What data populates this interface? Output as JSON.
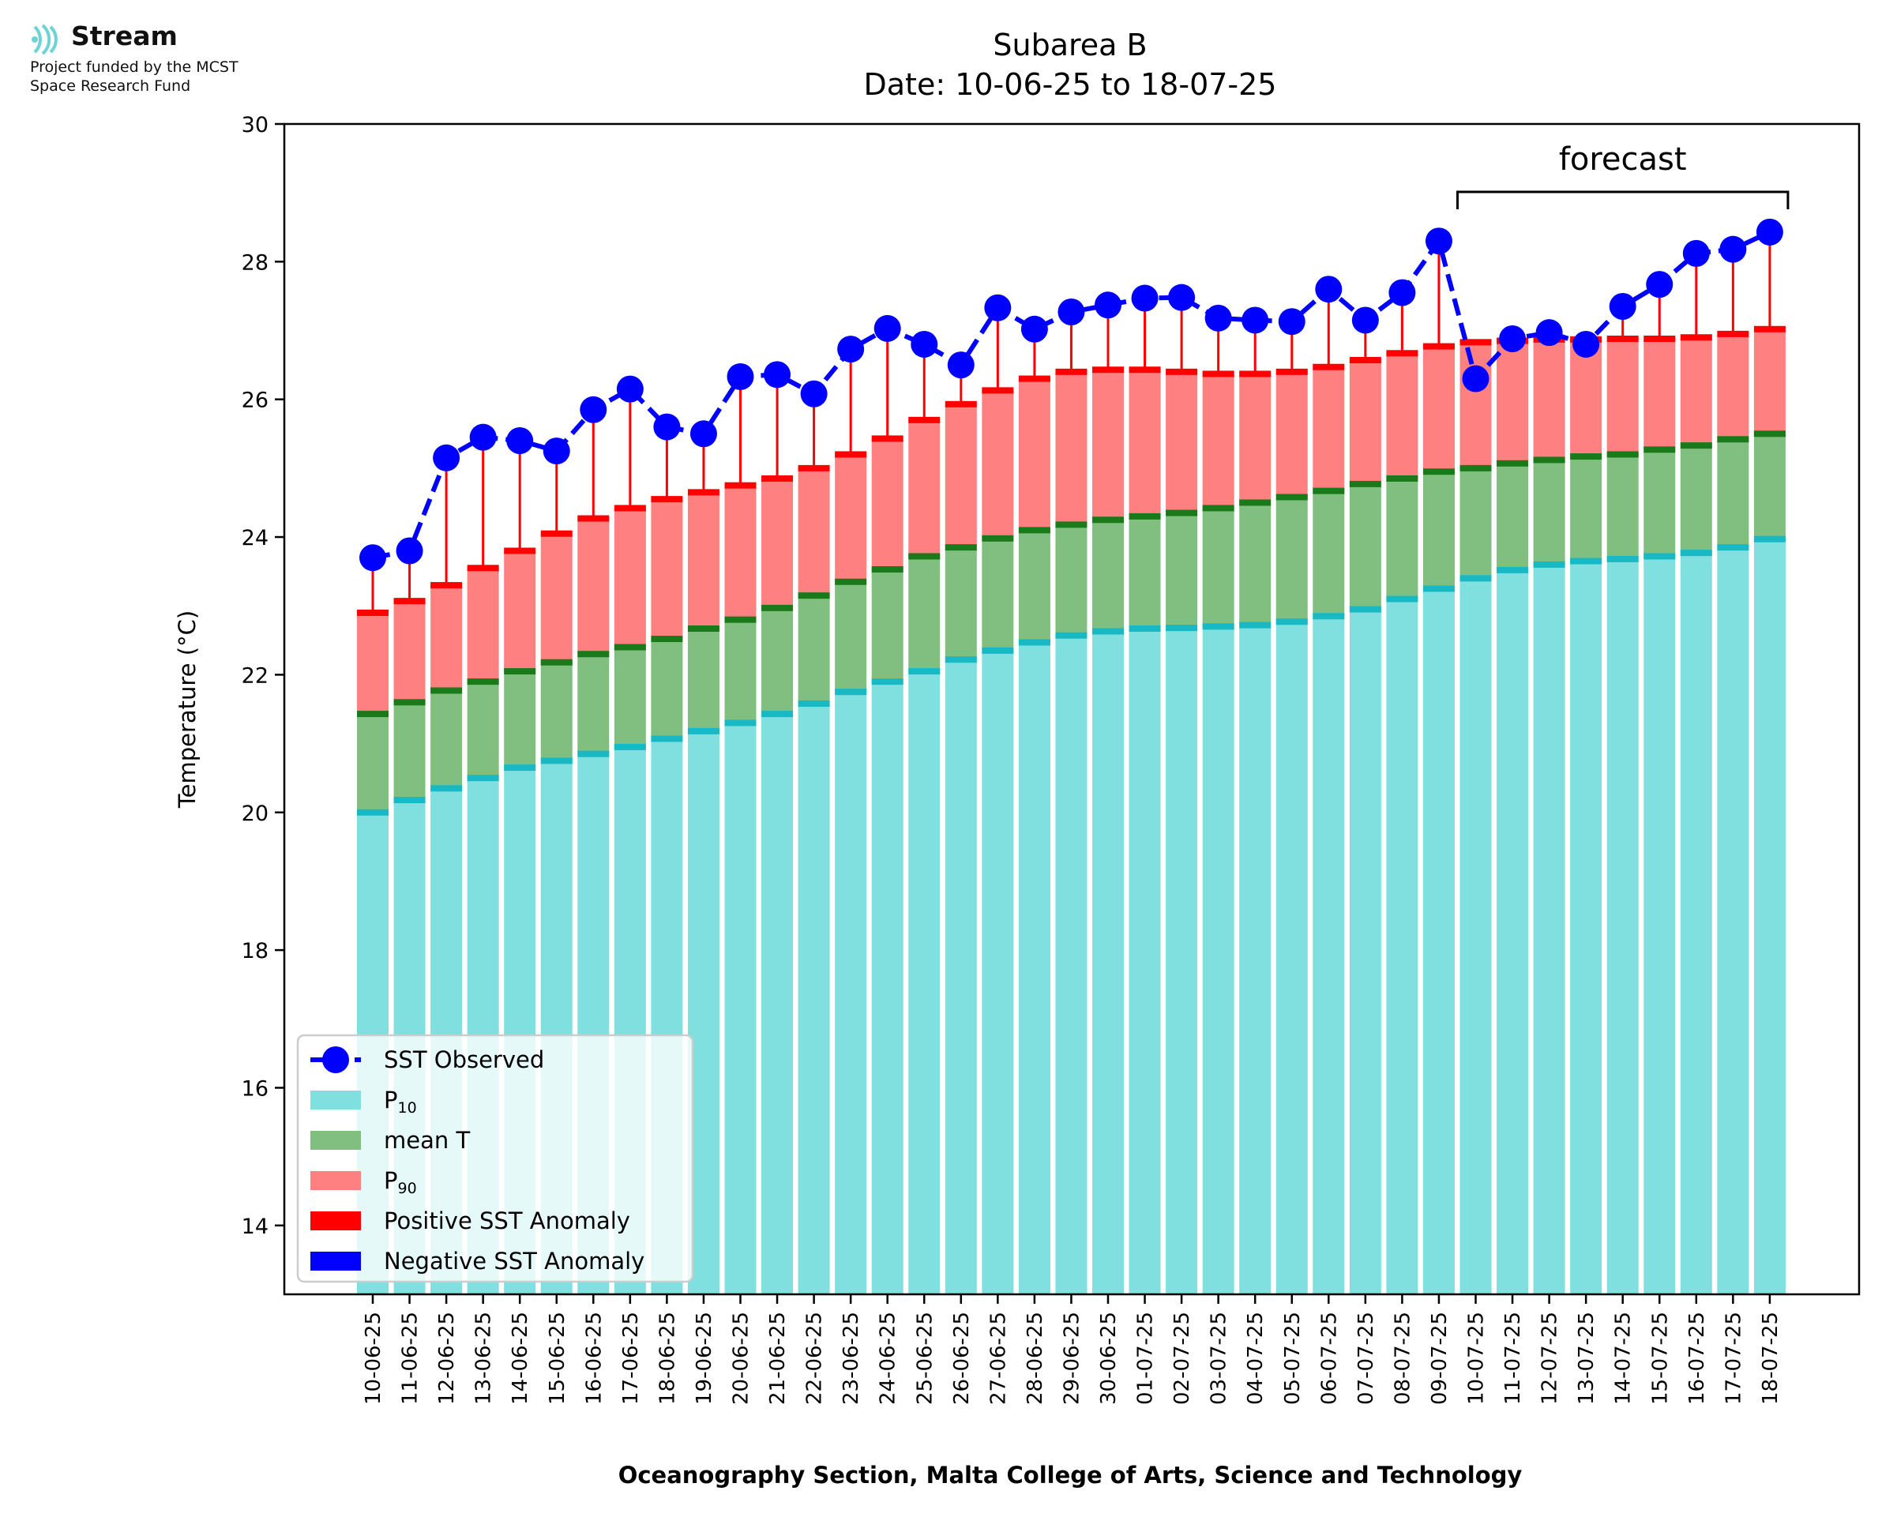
{
  "logo": {
    "name": "Stream",
    "line1": "Project funded by the MCST",
    "line2": "Space Research Fund"
  },
  "chart_data": {
    "type": "bar",
    "title": "Subarea B",
    "subtitle": "Date: 10-06-25 to 18-07-25",
    "ylabel": "Temperature (°C)",
    "xlabel": "Oceanography Section, Malta College of Arts, Science and Technology",
    "ylim": [
      13,
      30
    ],
    "yticks": [
      14,
      16,
      18,
      20,
      22,
      24,
      26,
      28,
      30
    ],
    "grid": false,
    "legend_position": "lower-left",
    "forecast_label": "forecast",
    "forecast_range": [
      "10-07-25",
      "18-07-25"
    ],
    "categories": [
      "10-06-25",
      "11-06-25",
      "12-06-25",
      "13-06-25",
      "14-06-25",
      "15-06-25",
      "16-06-25",
      "17-06-25",
      "18-06-25",
      "19-06-25",
      "20-06-25",
      "21-06-25",
      "22-06-25",
      "23-06-25",
      "24-06-25",
      "25-06-25",
      "26-06-25",
      "27-06-25",
      "28-06-25",
      "29-06-25",
      "30-06-25",
      "01-07-25",
      "02-07-25",
      "03-07-25",
      "04-07-25",
      "05-07-25",
      "06-07-25",
      "07-07-25",
      "08-07-25",
      "09-07-25",
      "10-07-25",
      "11-07-25",
      "12-07-25",
      "13-07-25",
      "14-07-25",
      "15-07-25",
      "16-07-25",
      "17-07-25",
      "18-07-25"
    ],
    "series": [
      {
        "name": "SST Observed",
        "type": "line",
        "style": "dashed-markers",
        "color": "#0000ff",
        "values": [
          23.7,
          23.8,
          25.15,
          25.45,
          25.4,
          25.25,
          25.85,
          26.15,
          25.6,
          25.5,
          26.33,
          26.36,
          26.08,
          26.73,
          27.03,
          26.8,
          26.5,
          27.33,
          27.02,
          27.27,
          27.37,
          27.47,
          27.48,
          27.18,
          27.15,
          27.13,
          27.6,
          27.15,
          27.55,
          28.3,
          26.3,
          26.88,
          26.97,
          26.8,
          27.35,
          27.67,
          28.12,
          28.18,
          28.43
        ]
      },
      {
        "name": "P10",
        "type": "bar",
        "color": "#80dfdf",
        "edge_color": "#18b9c4",
        "values": [
          20.0,
          20.18,
          20.35,
          20.5,
          20.65,
          20.75,
          20.85,
          20.95,
          21.07,
          21.18,
          21.3,
          21.43,
          21.58,
          21.75,
          21.9,
          22.05,
          22.22,
          22.35,
          22.47,
          22.57,
          22.63,
          22.67,
          22.68,
          22.7,
          22.72,
          22.77,
          22.85,
          22.95,
          23.1,
          23.25,
          23.4,
          23.52,
          23.6,
          23.65,
          23.68,
          23.72,
          23.77,
          23.85,
          23.97
        ]
      },
      {
        "name": "mean T",
        "type": "bar",
        "color": "#80bf80",
        "edge_color": "#1a7a1a",
        "values": [
          21.43,
          21.6,
          21.77,
          21.9,
          22.05,
          22.18,
          22.3,
          22.4,
          22.52,
          22.67,
          22.8,
          22.97,
          23.15,
          23.35,
          23.53,
          23.72,
          23.85,
          23.98,
          24.1,
          24.18,
          24.25,
          24.3,
          24.35,
          24.42,
          24.5,
          24.58,
          24.67,
          24.77,
          24.85,
          24.95,
          25.0,
          25.07,
          25.12,
          25.17,
          25.2,
          25.27,
          25.33,
          25.42,
          25.5
        ]
      },
      {
        "name": "P90",
        "type": "bar",
        "color": "#ff8080",
        "edge_color": "#ff0000",
        "values": [
          22.9,
          23.07,
          23.3,
          23.55,
          23.8,
          24.05,
          24.27,
          24.42,
          24.55,
          24.65,
          24.75,
          24.85,
          25.0,
          25.2,
          25.43,
          25.7,
          25.93,
          26.13,
          26.3,
          26.4,
          26.43,
          26.43,
          26.4,
          26.37,
          26.37,
          26.4,
          26.47,
          26.57,
          26.67,
          26.77,
          26.83,
          26.85,
          26.87,
          26.87,
          26.88,
          26.88,
          26.9,
          26.95,
          27.02
        ]
      }
    ],
    "legend": [
      "SST Observed",
      "P",
      "mean T",
      "P",
      "Positive SST Anomaly",
      "Negative SST Anomaly"
    ],
    "legend_sub": [
      "",
      "10",
      "",
      "90",
      "",
      ""
    ],
    "anomaly_colors": {
      "positive": "#ff0000",
      "negative": "#0000ff"
    }
  }
}
